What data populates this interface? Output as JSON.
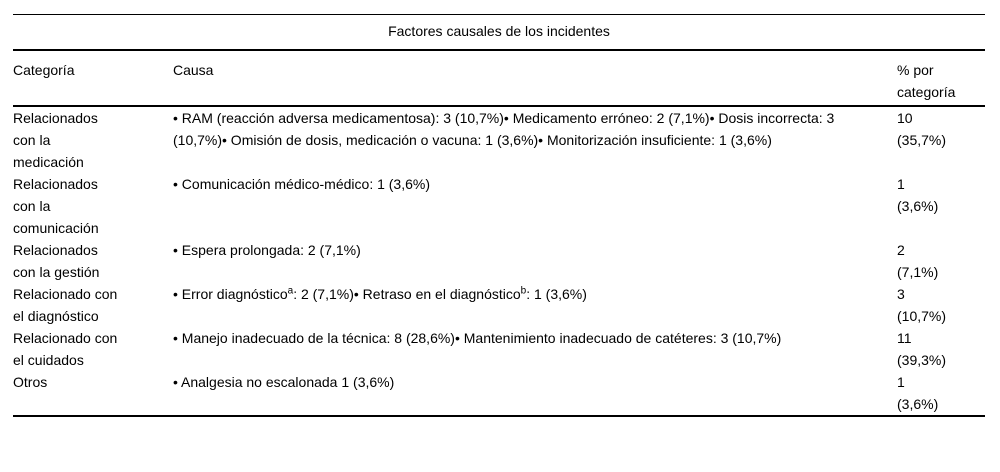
{
  "title": "Factores causales de los incidentes",
  "columns": {
    "category": "Categoría",
    "cause": "Causa",
    "pct": "% por categoría"
  },
  "rows": [
    {
      "category": "Relacionados con la medicación",
      "cause": "• RAM (reacción adversa medicamentosa): 3 (10,7%)• Medicamento erróneo: 2 (7,1%)• Dosis incorrecta: 3 (10,7%)• Omisión de dosis, medicación o vacuna: 1 (3,6%)• Monitorización insuficiente: 1 (3,6%)",
      "pct_value": "10",
      "pct_paren": "(35,7%)"
    },
    {
      "category": "Relacionados con la comunicación",
      "cause": "• Comunicación médico-médico: 1 (3,6%)",
      "pct_value": "1",
      "pct_paren": "(3,6%)"
    },
    {
      "category": "Relacionados con la gestión",
      "cause": "• Espera prolongada: 2 (7,1%)",
      "pct_value": "2",
      "pct_paren": "(7,1%)"
    },
    {
      "category": "Relacionado con el diagnóstico",
      "cause": "• Error diagnóstico^{a}: 2 (7,1%)• Retraso en el diagnóstico^{b}: 1 (3,6%)",
      "pct_value": "3",
      "pct_paren": "(10,7%)"
    },
    {
      "category": "Relacionado con el cuidados",
      "cause": "• Manejo inadecuado de la técnica: 8 (28,6%)• Mantenimiento inadecuado de catéteres: 3 (10,7%)",
      "pct_value": "11",
      "pct_paren": "(39,3%)"
    },
    {
      "category": "Otros",
      "cause": "• Analgesia no escalonada 1 (3,6%)",
      "pct_value": "1",
      "pct_paren": "(3,6%)"
    }
  ]
}
